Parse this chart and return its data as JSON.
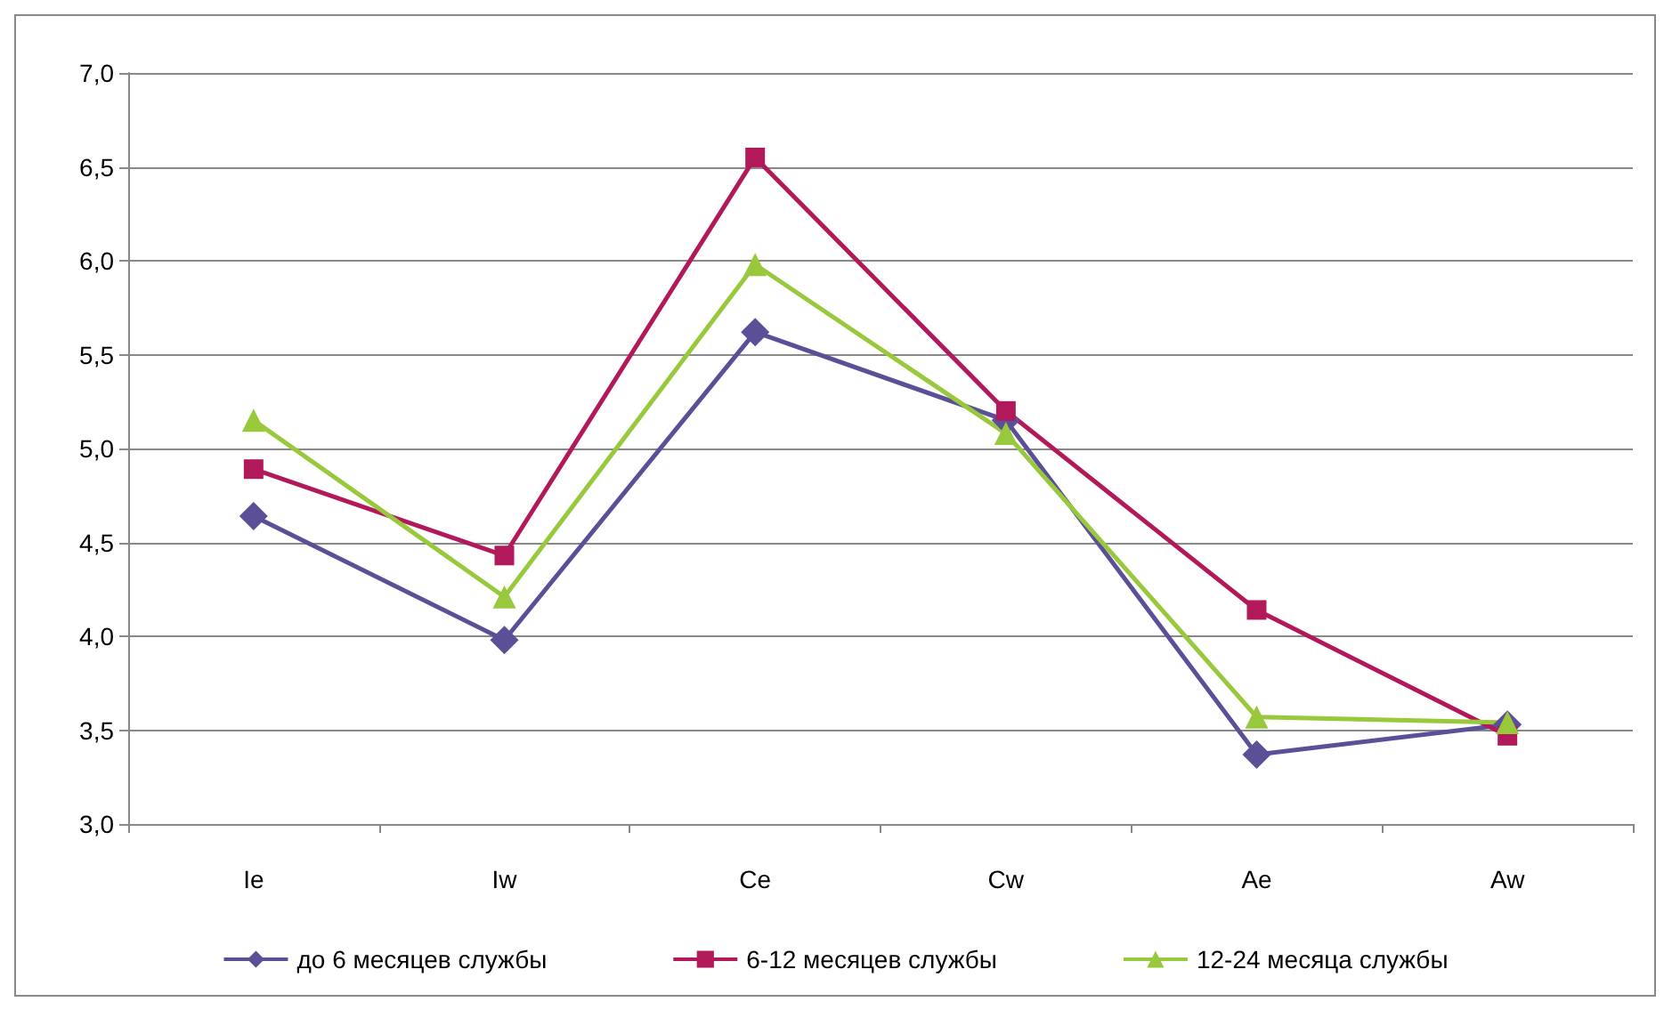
{
  "chart_data": {
    "type": "line",
    "categories": [
      "Ie",
      "Iw",
      "Ce",
      "Cw",
      "Ae",
      "Aw"
    ],
    "series": [
      {
        "name": "до 6 месяцев службы",
        "color": "#5b4f98",
        "marker": "diamond",
        "values": [
          4.64,
          3.98,
          5.62,
          5.15,
          3.37,
          3.53
        ]
      },
      {
        "name": "6-12 месяцев службы",
        "color": "#b2195b",
        "marker": "square",
        "values": [
          4.89,
          4.43,
          6.55,
          5.2,
          4.14,
          3.47
        ]
      },
      {
        "name": "12-24 месяца службы",
        "color": "#98c83c",
        "marker": "triangle",
        "values": [
          5.15,
          4.21,
          5.98,
          5.08,
          3.57,
          3.54
        ]
      }
    ],
    "ylim": [
      3,
      7
    ],
    "yticks": [
      {
        "value": 3,
        "label": "3,0"
      },
      {
        "value": 3.5,
        "label": "3,5"
      },
      {
        "value": 4,
        "label": "4,0"
      },
      {
        "value": 4.5,
        "label": "4,5"
      },
      {
        "value": 5,
        "label": "5,0"
      },
      {
        "value": 5.5,
        "label": "5,5"
      },
      {
        "value": 6,
        "label": "6,0"
      },
      {
        "value": 6.5,
        "label": "6,5"
      },
      {
        "value": 7,
        "label": "7,0"
      }
    ],
    "grid": "y",
    "legend": "bottom"
  }
}
